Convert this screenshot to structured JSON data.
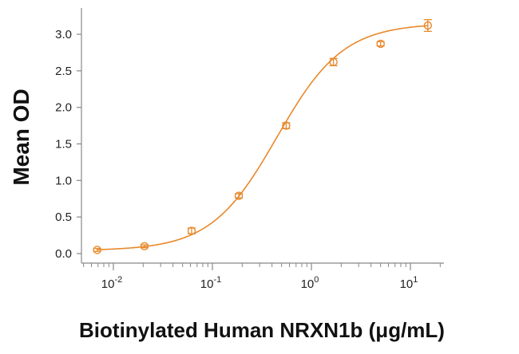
{
  "chart_data": {
    "type": "scatter",
    "title": "",
    "xlabel": "Biotinylated Human NRXN1b (μg/mL)",
    "ylabel": "Mean OD",
    "x_scale": "log",
    "xlim": [
      0.005,
      20
    ],
    "ylim": [
      -0.05,
      3.35
    ],
    "grid": false,
    "legend": "none",
    "color": "#E8892B",
    "y_ticks": [
      "0.0",
      "0.5",
      "1.0",
      "1.5",
      "2.0",
      "2.5",
      "3.0"
    ],
    "x_ticks": [
      {
        "base": "10",
        "exp": "-2",
        "value": 0.01
      },
      {
        "base": "10",
        "exp": "-1",
        "value": 0.1
      },
      {
        "base": "10",
        "exp": "0",
        "value": 1
      },
      {
        "base": "10",
        "exp": "1",
        "value": 10
      }
    ],
    "series": [
      {
        "x": [
          0.00686,
          0.0206,
          0.0617,
          0.185,
          0.556,
          1.67,
          5.0,
          15.0
        ],
        "y": [
          0.05,
          0.1,
          0.31,
          0.79,
          1.75,
          2.62,
          2.87,
          3.12
        ],
        "err": [
          0.02,
          0.02,
          0.04,
          0.03,
          0.04,
          0.05,
          0.03,
          0.08
        ]
      }
    ],
    "fit": {
      "bottom": 0.04,
      "top": 3.15,
      "ec50": 0.45,
      "hill": 1.3
    }
  }
}
